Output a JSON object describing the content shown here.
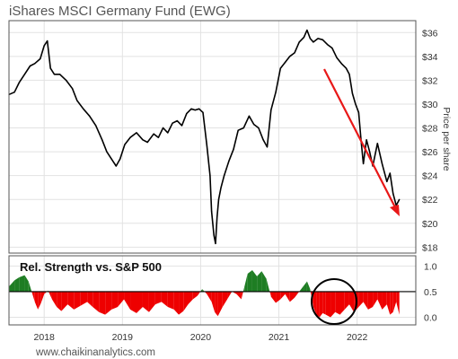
{
  "chart_data": [
    {
      "type": "line",
      "title": "iShares MSCI Germany Fund (EWG)",
      "ylabel": "Price per share",
      "ylim": [
        17.5,
        37
      ],
      "xlim": [
        2017.55,
        2022.75
      ],
      "grid": true,
      "y_ticks": [
        18,
        20,
        22,
        24,
        26,
        28,
        30,
        32,
        34,
        36
      ],
      "y_tick_labels": [
        "$18",
        "$20",
        "$22",
        "$24",
        "$26",
        "$28",
        "$30",
        "$32",
        "$34",
        "$36"
      ],
      "series": [
        {
          "color": "#000000",
          "x": [
            2017.55,
            2017.62,
            2017.68,
            2017.75,
            2017.82,
            2017.88,
            2017.95,
            2018.0,
            2018.04,
            2018.08,
            2018.13,
            2018.2,
            2018.28,
            2018.36,
            2018.42,
            2018.5,
            2018.58,
            2018.66,
            2018.74,
            2018.8,
            2018.86,
            2018.92,
            2018.97,
            2019.03,
            2019.1,
            2019.18,
            2019.26,
            2019.32,
            2019.4,
            2019.46,
            2019.52,
            2019.58,
            2019.64,
            2019.7,
            2019.76,
            2019.82,
            2019.88,
            2019.93,
            2019.98,
            2020.03,
            2020.08,
            2020.12,
            2020.14,
            2020.17,
            2020.19,
            2020.21,
            2020.23,
            2020.26,
            2020.3,
            2020.36,
            2020.42,
            2020.48,
            2020.55,
            2020.62,
            2020.68,
            2020.74,
            2020.8,
            2020.85,
            2020.9,
            2020.96,
            2021.02,
            2021.08,
            2021.14,
            2021.2,
            2021.26,
            2021.32,
            2021.36,
            2021.4,
            2021.44,
            2021.5,
            2021.56,
            2021.62,
            2021.68,
            2021.74,
            2021.8,
            2021.86,
            2021.9,
            2021.94,
            2021.98,
            2022.02,
            2022.05,
            2022.08,
            2022.12,
            2022.16,
            2022.2,
            2022.26,
            2022.32,
            2022.38,
            2022.42,
            2022.46,
            2022.5,
            2022.54
          ],
          "values": [
            30.8,
            31.0,
            31.8,
            32.5,
            33.2,
            33.4,
            33.8,
            34.9,
            35.3,
            33.0,
            32.5,
            32.5,
            32.0,
            31.3,
            30.3,
            29.6,
            29.0,
            28.2,
            27.0,
            26.0,
            25.4,
            24.8,
            25.4,
            26.6,
            27.2,
            27.6,
            27.0,
            26.8,
            27.5,
            27.2,
            28.0,
            27.6,
            28.4,
            28.6,
            28.2,
            29.2,
            29.6,
            29.5,
            29.6,
            29.3,
            26.5,
            24.0,
            21.0,
            19.0,
            18.3,
            20.5,
            22.0,
            23.0,
            24.0,
            25.2,
            26.2,
            27.8,
            28.0,
            29.0,
            28.3,
            28.0,
            27.0,
            26.4,
            29.5,
            31.0,
            33.0,
            33.5,
            34.0,
            34.3,
            35.2,
            35.6,
            36.2,
            35.5,
            35.2,
            35.5,
            35.4,
            35.0,
            34.7,
            33.9,
            33.4,
            33.0,
            32.5,
            30.9,
            30.0,
            29.3,
            27.0,
            25.0,
            27.0,
            26.0,
            24.8,
            26.7,
            25.0,
            23.5,
            24.2,
            22.5,
            21.5,
            22.0
          ]
        }
      ]
    },
    {
      "type": "area",
      "title": "Rel. Strength vs. S&P 500",
      "ylim": [
        -0.15,
        1.2
      ],
      "xlim": [
        2017.55,
        2022.75
      ],
      "baseline": 0.5,
      "above_color": "#1e7d23",
      "below_color": "#ee0000",
      "y_ticks": [
        0.0,
        0.5,
        1.0
      ],
      "y_tick_labels": [
        "0.0",
        "0.5",
        "1.0"
      ],
      "x_ticks": [
        2018,
        2019,
        2020,
        2021,
        2022
      ],
      "x_tick_labels": [
        "2018",
        "2019",
        "2020",
        "2021",
        "2022"
      ],
      "series": [
        {
          "x": [
            2017.55,
            2017.62,
            2017.68,
            2017.75,
            2017.8,
            2017.84,
            2017.88,
            2017.92,
            2017.96,
            2018.0,
            2018.05,
            2018.1,
            2018.16,
            2018.22,
            2018.3,
            2018.38,
            2018.46,
            2018.55,
            2018.62,
            2018.7,
            2018.78,
            2018.86,
            2018.94,
            2019.02,
            2019.1,
            2019.18,
            2019.26,
            2019.34,
            2019.42,
            2019.5,
            2019.58,
            2019.66,
            2019.72,
            2019.78,
            2019.84,
            2019.9,
            2019.96,
            2020.02,
            2020.08,
            2020.14,
            2020.18,
            2020.22,
            2020.28,
            2020.34,
            2020.4,
            2020.46,
            2020.52,
            2020.56,
            2020.6,
            2020.66,
            2020.72,
            2020.78,
            2020.84,
            2020.9,
            2020.96,
            2021.02,
            2021.08,
            2021.14,
            2021.2,
            2021.26,
            2021.32,
            2021.36,
            2021.4,
            2021.44,
            2021.48,
            2021.52,
            2021.56,
            2021.6,
            2021.66,
            2021.72,
            2021.78,
            2021.84,
            2021.9,
            2021.96,
            2022.02,
            2022.08,
            2022.14,
            2022.2,
            2022.26,
            2022.32,
            2022.38,
            2022.42,
            2022.46,
            2022.5,
            2022.54
          ],
          "values": [
            0.6,
            0.72,
            0.78,
            0.82,
            0.7,
            0.5,
            0.3,
            0.15,
            0.28,
            0.45,
            0.52,
            0.35,
            0.2,
            0.12,
            0.25,
            0.15,
            0.22,
            0.3,
            0.2,
            0.1,
            0.05,
            0.15,
            0.2,
            0.35,
            0.15,
            0.08,
            0.2,
            0.1,
            0.25,
            0.3,
            0.2,
            0.15,
            0.05,
            0.12,
            0.25,
            0.35,
            0.42,
            0.55,
            0.45,
            0.3,
            0.1,
            0.02,
            0.2,
            0.35,
            0.5,
            0.45,
            0.35,
            0.6,
            0.85,
            0.92,
            0.8,
            0.9,
            0.75,
            0.4,
            0.28,
            0.35,
            0.45,
            0.3,
            0.38,
            0.5,
            0.62,
            0.7,
            0.55,
            0.2,
            0.05,
            0.0,
            0.08,
            0.05,
            0.0,
            0.1,
            0.05,
            0.15,
            0.25,
            0.1,
            0.2,
            0.3,
            0.15,
            0.2,
            0.35,
            0.15,
            0.25,
            0.05,
            0.1,
            0.3,
            0.05
          ]
        }
      ]
    }
  ],
  "footer": {
    "url": "www.chaikinanalytics.com"
  }
}
